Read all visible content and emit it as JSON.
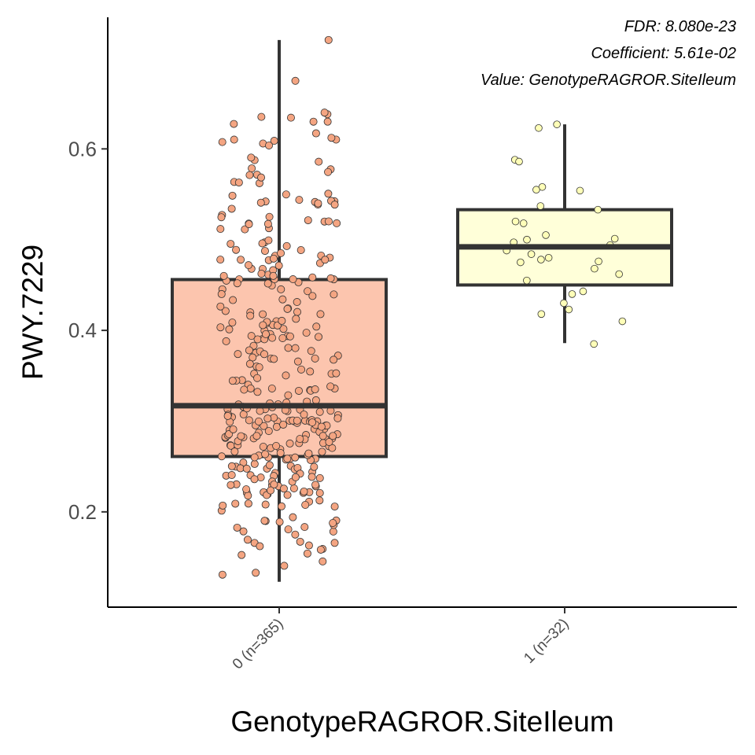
{
  "chart_data": {
    "type": "box",
    "xlabel": "GenotypeRAGROR.SiteIleum",
    "ylabel": "PWY.7229",
    "ylim": [
      0.095,
      0.745
    ],
    "yticks": [
      0.2,
      0.4,
      0.6
    ],
    "ytick_labels": [
      "0.2",
      "0.4",
      "0.6"
    ],
    "annotations": [
      "FDR: 8.080e-23",
      "Coefficient: 5.61e-02",
      "Value: GenotypeRAGROR.SiteIleum"
    ],
    "legend": "none",
    "grid": false,
    "groups": [
      {
        "label": "0 (n=365)",
        "n": 365,
        "fill": "#fcc5ae",
        "point_color": "#f4a582",
        "whisker_low": 0.123,
        "q1": 0.261,
        "median": 0.317,
        "q3": 0.456,
        "whisker_high": 0.72,
        "outliers_high": [
          0.72,
          0.675,
          0.64
        ]
      },
      {
        "label": "1 (n=32)",
        "n": 32,
        "fill": "#ffffd9",
        "point_color": "#ffffb8",
        "whisker_low": 0.386,
        "q1": 0.45,
        "median": 0.492,
        "q3": 0.533,
        "whisker_high": 0.627,
        "points": [
          0.627,
          0.623,
          0.588,
          0.586,
          0.558,
          0.555,
          0.554,
          0.537,
          0.533,
          0.52,
          0.518,
          0.505,
          0.501,
          0.5,
          0.497,
          0.494,
          0.488,
          0.484,
          0.48,
          0.478,
          0.476,
          0.468,
          0.462,
          0.455,
          0.443,
          0.44,
          0.43,
          0.423,
          0.418,
          0.41,
          0.385,
          0.475
        ]
      }
    ]
  }
}
